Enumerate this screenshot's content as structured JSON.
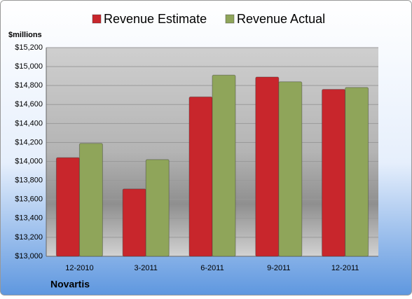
{
  "chart_data": {
    "type": "bar",
    "y_label": "$millions",
    "annotation": "Novartis",
    "categories": [
      "12-2010",
      "3-2011",
      "6-2011",
      "9-2011",
      "12-2011"
    ],
    "series": [
      {
        "name": "Revenue Estimate",
        "color": "#c8262c",
        "values": [
          14040,
          13710,
          14680,
          14890,
          14760
        ]
      },
      {
        "name": "Revenue Actual",
        "color": "#8fa55a",
        "values": [
          14190,
          14020,
          14910,
          14840,
          14780
        ]
      }
    ],
    "ylim": [
      13000,
      15200
    ],
    "yticks": [
      {
        "value": 13000,
        "label": "$13,000"
      },
      {
        "value": 13200,
        "label": "$13,200"
      },
      {
        "value": 13400,
        "label": "$13,400"
      },
      {
        "value": 13600,
        "label": "$13,600"
      },
      {
        "value": 13800,
        "label": "$13,800"
      },
      {
        "value": 14000,
        "label": "$14,000"
      },
      {
        "value": 14200,
        "label": "$14,200"
      },
      {
        "value": 14400,
        "label": "$14,400"
      },
      {
        "value": 14600,
        "label": "$14,600"
      },
      {
        "value": 14800,
        "label": "$14,800"
      },
      {
        "value": 15000,
        "label": "$15,000"
      },
      {
        "value": 15200,
        "label": "$15,200"
      }
    ],
    "grid": true
  }
}
